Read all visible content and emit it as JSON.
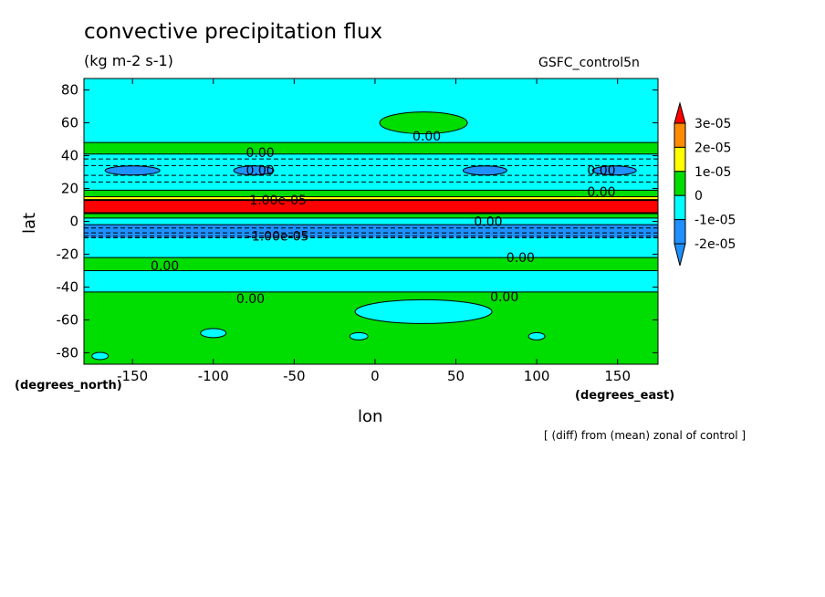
{
  "title": "convective precipitation flux",
  "units": "(kg m-2 s-1)",
  "dataset": "GSFC_control5n",
  "note": "[ (diff) from (mean) zonal of control ]",
  "chart_data": {
    "type": "heatmap",
    "xlabel": "lon",
    "ylabel": "lat",
    "x_units": "(degrees_east)",
    "y_units": "(degrees_north)",
    "xlim": [
      -180,
      175
    ],
    "ylim": [
      -87,
      87
    ],
    "x_ticks": [
      -150,
      -100,
      -50,
      0,
      50,
      100,
      150
    ],
    "y_ticks": [
      -80,
      -60,
      -40,
      -20,
      0,
      20,
      40,
      60,
      80
    ],
    "colorbar": {
      "levels": [
        "3e-05",
        "2e-05",
        "1e-05",
        "0",
        "-1e-05",
        "-2e-05"
      ],
      "colors": [
        "#ff0000",
        "#ff8c00",
        "#ffff00",
        "#00dd00",
        "#00ffff",
        "#1e90ff",
        "#1e90ff"
      ],
      "extend": "both"
    },
    "zonal_bands": [
      {
        "lat_from": 87,
        "lat_to": 48,
        "class": "cyan"
      },
      {
        "lat_from": 48,
        "lat_to": 41,
        "class": "green"
      },
      {
        "lat_from": 41,
        "lat_to": 19,
        "class": "cyan"
      },
      {
        "lat_from": 19,
        "lat_to": 15,
        "class": "green"
      },
      {
        "lat_from": 15,
        "lat_to": 13,
        "class": "yellow"
      },
      {
        "lat_from": 13,
        "lat_to": 5,
        "class": "red"
      },
      {
        "lat_from": 5,
        "lat_to": 2,
        "class": "green"
      },
      {
        "lat_from": 2,
        "lat_to": -2,
        "class": "cyan"
      },
      {
        "lat_from": -2,
        "lat_to": -10,
        "class": "blue"
      },
      {
        "lat_from": -10,
        "lat_to": -22,
        "class": "cyan"
      },
      {
        "lat_from": -22,
        "lat_to": -30,
        "class": "green"
      },
      {
        "lat_from": -30,
        "lat_to": -43,
        "class": "cyan"
      },
      {
        "lat_from": -43,
        "lat_to": -87,
        "class": "green"
      }
    ],
    "contour_labels": [
      {
        "text": "0.00",
        "lon": -71,
        "lat": 42
      },
      {
        "text": "0.00",
        "lon": -71,
        "lat": 31
      },
      {
        "text": "0.00",
        "lon": 32,
        "lat": 52
      },
      {
        "text": "0.00",
        "lon": 140,
        "lat": 31
      },
      {
        "text": "0.00",
        "lon": 140,
        "lat": 18
      },
      {
        "text": "1.00e-05",
        "lon": -60,
        "lat": 13
      },
      {
        "text": "0.00",
        "lon": 70,
        "lat": 0
      },
      {
        "text": "-1.00e-05",
        "lon": -60,
        "lat": -9
      },
      {
        "text": "0.00",
        "lon": -130,
        "lat": -27
      },
      {
        "text": "0.00",
        "lon": 90,
        "lat": -22
      },
      {
        "text": "0.00",
        "lon": -77,
        "lat": -47
      },
      {
        "text": "0.00",
        "lon": 80,
        "lat": -46
      }
    ]
  }
}
